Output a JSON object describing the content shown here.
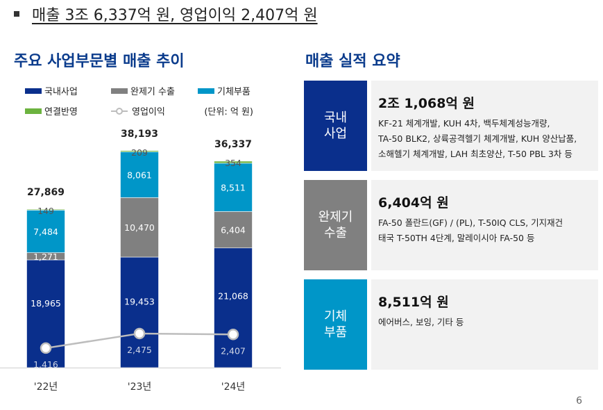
{
  "headline": "매출 3조 6,337억 원, 영업이익 2,407억 원",
  "left_title": "주요 사업부문별 매출 추이",
  "right_title": "매출 실적 요약",
  "unit": "(단위: 억 원)",
  "page_number": "6",
  "colors": {
    "domestic": "#0a2f8c",
    "export": "#808080",
    "parts": "#0096c8",
    "consolidation": "#6cb33f",
    "op": "#bdbdbd",
    "title": "#0a3b8c"
  },
  "chart_data": {
    "type": "bar",
    "stacked": true,
    "title": "주요 사업부문별 매출 추이",
    "categories": [
      "'22년",
      "'23년",
      "'24년"
    ],
    "series": [
      {
        "name": "국내사업",
        "color": "#0a2f8c",
        "values": [
          18965,
          19453,
          21068
        ],
        "labels": [
          "18,965",
          "19,453",
          "21,068"
        ]
      },
      {
        "name": "완제기 수출",
        "color": "#808080",
        "values": [
          1271,
          10470,
          6404
        ],
        "labels": [
          "1,271",
          "10,470",
          "6,404"
        ]
      },
      {
        "name": "기체부품",
        "color": "#0096c8",
        "values": [
          7484,
          8061,
          8511
        ],
        "labels": [
          "7,484",
          "8,061",
          "8,511"
        ]
      },
      {
        "name": "연결반영",
        "color": "#6cb33f",
        "values": [
          149,
          209,
          354
        ],
        "labels": [
          "149",
          "209",
          "354"
        ]
      }
    ],
    "totals": [
      27869,
      38193,
      36337
    ],
    "total_labels": [
      "27,869",
      "38,193",
      "36,337"
    ],
    "line": {
      "name": "영업이익",
      "values": [
        1416,
        2475,
        2407
      ],
      "labels": [
        "1,416",
        "2,475",
        "2,407"
      ]
    },
    "ylim": [
      0,
      40000
    ],
    "line_ylim": [
      0,
      16500
    ]
  },
  "cards": [
    {
      "tag_lines": [
        "국내",
        "사업"
      ],
      "amount": "2조 1,068억 원",
      "color": "#0a2f8c",
      "desc_lines": [
        "KF-21 체계개발, KUH 4차, 백두체계성능개량,",
        "TA-50 BLK2, 상륙공격헬기 체계개발, KUH 양산납품,",
        "소해헬기 체계개발, LAH 최초양산, T-50 PBL 3차 등"
      ]
    },
    {
      "tag_lines": [
        "완제기",
        "수출"
      ],
      "amount": "6,404억 원",
      "color": "#808080",
      "desc_lines": [
        "FA-50 폴란드(GF) / (PL), T-50IQ CLS, 기지재건",
        "태국 T-50TH 4단계, 말레이시아 FA-50 등"
      ]
    },
    {
      "tag_lines": [
        "기체",
        "부품"
      ],
      "amount": "8,511억 원",
      "color": "#0096c8",
      "desc_lines": [
        "에어버스, 보잉, 기타 등"
      ]
    }
  ]
}
